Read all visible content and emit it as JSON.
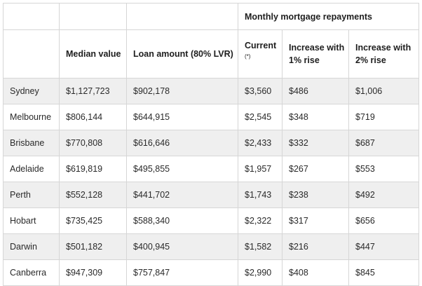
{
  "table": {
    "group_header": "Monthly mortgage repayments",
    "columns": {
      "city": "",
      "median_value": "Median value",
      "loan_amount": "Loan amount (80% LVR)",
      "current": "Current",
      "current_note": "(*)",
      "increase_1": "Increase with 1% rise",
      "increase_2": "Increase with 2% rise"
    },
    "rows": [
      {
        "city": "Sydney",
        "median_value": "$1,127,723",
        "loan_amount": "$902,178",
        "current": "$3,560",
        "increase_1": "$486",
        "increase_2": "$1,006"
      },
      {
        "city": "Melbourne",
        "median_value": "$806,144",
        "loan_amount": "$644,915",
        "current": "$2,545",
        "increase_1": "$348",
        "increase_2": "$719"
      },
      {
        "city": "Brisbane",
        "median_value": "$770,808",
        "loan_amount": "$616,646",
        "current": "$2,433",
        "increase_1": "$332",
        "increase_2": "$687"
      },
      {
        "city": "Adelaide",
        "median_value": "$619,819",
        "loan_amount": "$495,855",
        "current": "$1,957",
        "increase_1": "$267",
        "increase_2": "$553"
      },
      {
        "city": "Perth",
        "median_value": "$552,128",
        "loan_amount": "$441,702",
        "current": "$1,743",
        "increase_1": "$238",
        "increase_2": "$492"
      },
      {
        "city": "Hobart",
        "median_value": "$735,425",
        "loan_amount": "$588,340",
        "current": "$2,322",
        "increase_1": "$317",
        "increase_2": "$656"
      },
      {
        "city": "Darwin",
        "median_value": "$501,182",
        "loan_amount": "$400,945",
        "current": "$1,582",
        "increase_1": "$216",
        "increase_2": "$447"
      },
      {
        "city": "Canberra",
        "median_value": "$947,309",
        "loan_amount": "$757,847",
        "current": "$2,990",
        "increase_1": "$408",
        "increase_2": "$845"
      }
    ]
  }
}
